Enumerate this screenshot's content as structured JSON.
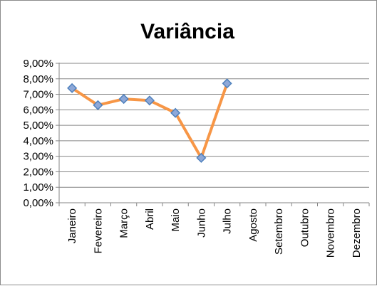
{
  "chart_data": {
    "type": "line",
    "title": "Variância",
    "xlabel": "",
    "ylabel": "",
    "categories": [
      "Janeiro",
      "Fevereiro",
      "Março",
      "Abril",
      "Maio",
      "Junho",
      "Julho",
      "Agosto",
      "Setembro",
      "Outubro",
      "Novembro",
      "Dezembro"
    ],
    "y_tick_labels": [
      "0,00%",
      "1,00%",
      "2,00%",
      "3,00%",
      "4,00%",
      "5,00%",
      "6,00%",
      "7,00%",
      "8,00%",
      "9,00%"
    ],
    "ylim": [
      0,
      9
    ],
    "y_unit": "%",
    "grid": true,
    "legend": "none",
    "series": [
      {
        "values": [
          7.4,
          6.3,
          6.7,
          6.6,
          5.8,
          2.9,
          7.7,
          null,
          null,
          null,
          null,
          null
        ],
        "line_color": "#F79646",
        "marker": "diamond",
        "marker_fill": "#8EA8D8",
        "marker_edge": "#4F81BD"
      }
    ],
    "colors": {
      "gridline": "#868686",
      "axis": "#868686"
    }
  }
}
